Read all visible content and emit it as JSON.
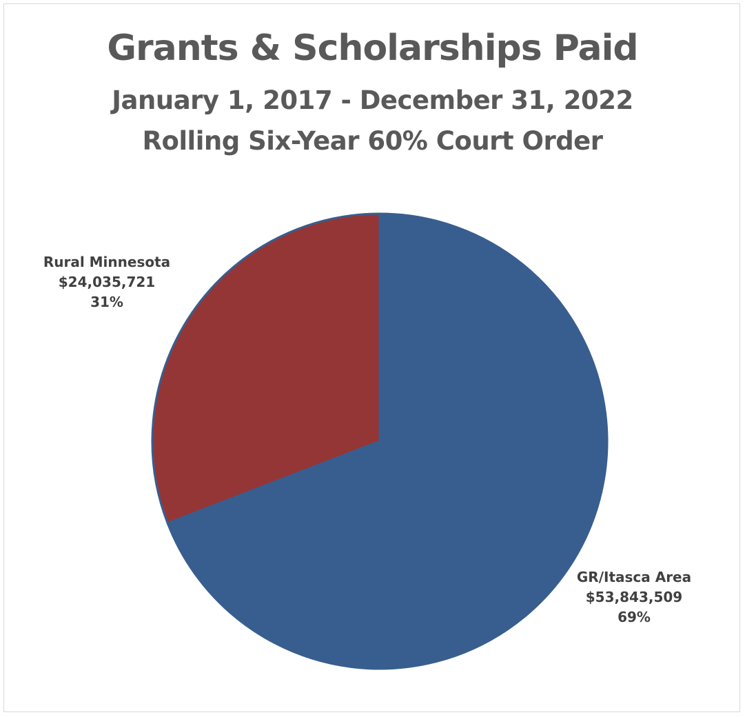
{
  "chart_data": {
    "type": "pie",
    "title": "Grants & Scholarships Paid",
    "subtitle": [
      "January 1, 2017 - December 31, 2022",
      "Rolling Six-Year 60% Court Order"
    ],
    "slices": [
      {
        "label": "GR/Itasca Area",
        "value_label": "$53,843,509",
        "value": 53843509,
        "percent_label": "69%",
        "percent": 69,
        "color": "#385E8F"
      },
      {
        "label": "Rural Minnesota",
        "value_label": "$24,035,721",
        "value": 24035721,
        "percent_label": "31%",
        "percent": 31,
        "color": "#943636"
      }
    ],
    "start_angle": "12 o'clock",
    "direction": "clockwise",
    "legend": "none"
  }
}
